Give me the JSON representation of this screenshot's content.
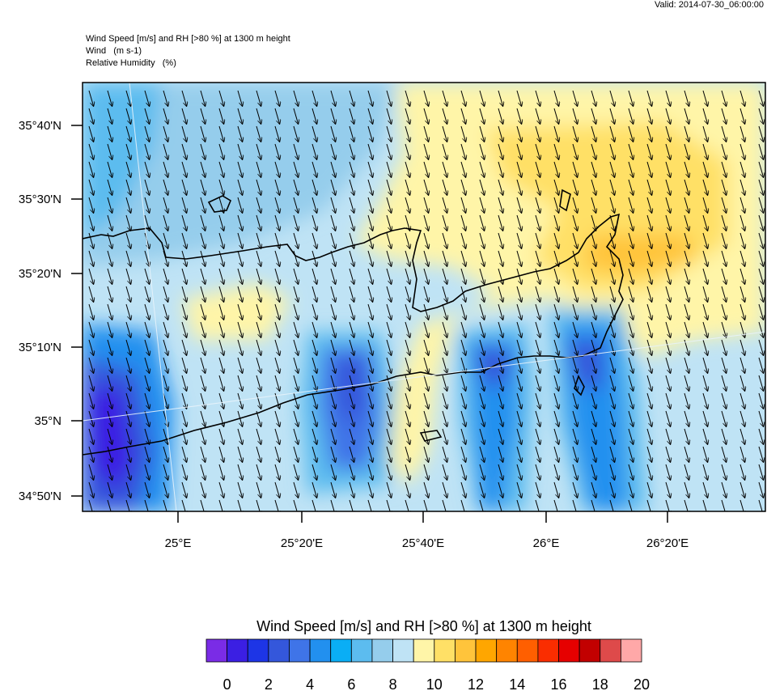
{
  "valid_label": "Valid: 2014-07-30_06:00:00",
  "header": {
    "line1": "Wind Speed [m/s] and RH [>80 %] at 1300 m height",
    "line2": "Wind   (m s-1)",
    "line3": "Relative Humidity   (%)"
  },
  "map": {
    "lat_labels": [
      "35°40'N",
      "35°30'N",
      "35°20'N",
      "35°10'N",
      "35°N",
      "34°50'N"
    ],
    "lon_labels": [
      "25°E",
      "25°20'E",
      "25°40'E",
      "26°E",
      "26°20'E"
    ],
    "wind_direction": "from NNW toward SSE"
  },
  "colorbar": {
    "title": "Wind Speed [m/s] and RH [>80 %] at 1300 m height",
    "colors": [
      "#7a2ce6",
      "#3b1fe3",
      "#1d35e6",
      "#3457db",
      "#3f74e8",
      "#2290ef",
      "#0aaef5",
      "#5cbcef",
      "#95cdec",
      "#bfe3f5",
      "#fff5a8",
      "#ffe066",
      "#ffc43b",
      "#ffa600",
      "#ff8400",
      "#ff5f00",
      "#fa2d00",
      "#e60000",
      "#c20000",
      "#de4a4a",
      "#ffa8a8"
    ],
    "labels": [
      "0",
      "2",
      "4",
      "6",
      "8",
      "10",
      "12",
      "14",
      "16",
      "18",
      "20"
    ]
  }
}
